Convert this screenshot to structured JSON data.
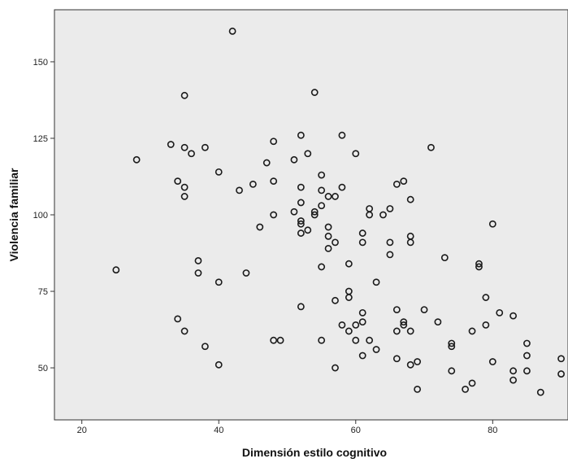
{
  "chart_data": {
    "type": "scatter",
    "title": "",
    "xlabel": "Dimensión estilo cognitivo",
    "ylabel": "Violencia familiar",
    "xlim": [
      16,
      91
    ],
    "ylim": [
      33,
      167
    ],
    "x_ticks": [
      20,
      40,
      60,
      80
    ],
    "y_ticks": [
      50,
      75,
      100,
      125,
      150
    ],
    "grid": false,
    "legend": "none",
    "colors": {
      "background": "#ebebeb",
      "marker": "#1a1a1a",
      "frame": "#333333"
    },
    "points": [
      {
        "x": 25,
        "y": 82
      },
      {
        "x": 28,
        "y": 118
      },
      {
        "x": 33,
        "y": 123
      },
      {
        "x": 34,
        "y": 111
      },
      {
        "x": 34,
        "y": 66
      },
      {
        "x": 35,
        "y": 139
      },
      {
        "x": 35,
        "y": 122
      },
      {
        "x": 35,
        "y": 109
      },
      {
        "x": 35,
        "y": 106
      },
      {
        "x": 35,
        "y": 62
      },
      {
        "x": 36,
        "y": 120
      },
      {
        "x": 37,
        "y": 85
      },
      {
        "x": 37,
        "y": 81
      },
      {
        "x": 38,
        "y": 122
      },
      {
        "x": 38,
        "y": 57
      },
      {
        "x": 40,
        "y": 114
      },
      {
        "x": 40,
        "y": 78
      },
      {
        "x": 40,
        "y": 51
      },
      {
        "x": 42,
        "y": 160
      },
      {
        "x": 43,
        "y": 108
      },
      {
        "x": 44,
        "y": 81
      },
      {
        "x": 45,
        "y": 110
      },
      {
        "x": 46,
        "y": 96
      },
      {
        "x": 47,
        "y": 117
      },
      {
        "x": 48,
        "y": 124
      },
      {
        "x": 48,
        "y": 111
      },
      {
        "x": 48,
        "y": 100
      },
      {
        "x": 48,
        "y": 59
      },
      {
        "x": 49,
        "y": 59
      },
      {
        "x": 51,
        "y": 118
      },
      {
        "x": 51,
        "y": 101
      },
      {
        "x": 52,
        "y": 126
      },
      {
        "x": 52,
        "y": 109
      },
      {
        "x": 52,
        "y": 104
      },
      {
        "x": 52,
        "y": 98
      },
      {
        "x": 52,
        "y": 97
      },
      {
        "x": 52,
        "y": 94
      },
      {
        "x": 52,
        "y": 70
      },
      {
        "x": 53,
        "y": 120
      },
      {
        "x": 53,
        "y": 95
      },
      {
        "x": 54,
        "y": 140
      },
      {
        "x": 54,
        "y": 101
      },
      {
        "x": 54,
        "y": 100
      },
      {
        "x": 55,
        "y": 113
      },
      {
        "x": 55,
        "y": 108
      },
      {
        "x": 55,
        "y": 103
      },
      {
        "x": 55,
        "y": 83
      },
      {
        "x": 55,
        "y": 59
      },
      {
        "x": 56,
        "y": 106
      },
      {
        "x": 56,
        "y": 96
      },
      {
        "x": 56,
        "y": 93
      },
      {
        "x": 56,
        "y": 89
      },
      {
        "x": 57,
        "y": 106
      },
      {
        "x": 57,
        "y": 91
      },
      {
        "x": 57,
        "y": 72
      },
      {
        "x": 57,
        "y": 50
      },
      {
        "x": 58,
        "y": 126
      },
      {
        "x": 58,
        "y": 109
      },
      {
        "x": 58,
        "y": 64
      },
      {
        "x": 59,
        "y": 84
      },
      {
        "x": 59,
        "y": 75
      },
      {
        "x": 59,
        "y": 73
      },
      {
        "x": 59,
        "y": 62
      },
      {
        "x": 60,
        "y": 120
      },
      {
        "x": 60,
        "y": 64
      },
      {
        "x": 60,
        "y": 59
      },
      {
        "x": 61,
        "y": 94
      },
      {
        "x": 61,
        "y": 91
      },
      {
        "x": 61,
        "y": 68
      },
      {
        "x": 61,
        "y": 65
      },
      {
        "x": 61,
        "y": 54
      },
      {
        "x": 62,
        "y": 102
      },
      {
        "x": 62,
        "y": 100
      },
      {
        "x": 62,
        "y": 59
      },
      {
        "x": 63,
        "y": 78
      },
      {
        "x": 63,
        "y": 56
      },
      {
        "x": 64,
        "y": 100
      },
      {
        "x": 65,
        "y": 102
      },
      {
        "x": 65,
        "y": 91
      },
      {
        "x": 65,
        "y": 87
      },
      {
        "x": 66,
        "y": 110
      },
      {
        "x": 66,
        "y": 69
      },
      {
        "x": 66,
        "y": 62
      },
      {
        "x": 66,
        "y": 53
      },
      {
        "x": 67,
        "y": 111
      },
      {
        "x": 67,
        "y": 65
      },
      {
        "x": 67,
        "y": 64
      },
      {
        "x": 68,
        "y": 105
      },
      {
        "x": 68,
        "y": 93
      },
      {
        "x": 68,
        "y": 91
      },
      {
        "x": 68,
        "y": 62
      },
      {
        "x": 68,
        "y": 51
      },
      {
        "x": 69,
        "y": 52
      },
      {
        "x": 69,
        "y": 43
      },
      {
        "x": 70,
        "y": 69
      },
      {
        "x": 71,
        "y": 122
      },
      {
        "x": 72,
        "y": 65
      },
      {
        "x": 73,
        "y": 86
      },
      {
        "x": 74,
        "y": 58
      },
      {
        "x": 74,
        "y": 57
      },
      {
        "x": 74,
        "y": 49
      },
      {
        "x": 76,
        "y": 43
      },
      {
        "x": 77,
        "y": 62
      },
      {
        "x": 77,
        "y": 45
      },
      {
        "x": 78,
        "y": 84
      },
      {
        "x": 78,
        "y": 83
      },
      {
        "x": 79,
        "y": 73
      },
      {
        "x": 79,
        "y": 64
      },
      {
        "x": 80,
        "y": 97
      },
      {
        "x": 80,
        "y": 52
      },
      {
        "x": 81,
        "y": 68
      },
      {
        "x": 83,
        "y": 67
      },
      {
        "x": 83,
        "y": 49
      },
      {
        "x": 83,
        "y": 46
      },
      {
        "x": 85,
        "y": 58
      },
      {
        "x": 85,
        "y": 54
      },
      {
        "x": 85,
        "y": 49
      },
      {
        "x": 87,
        "y": 42
      },
      {
        "x": 90,
        "y": 53
      },
      {
        "x": 90,
        "y": 48
      }
    ]
  }
}
